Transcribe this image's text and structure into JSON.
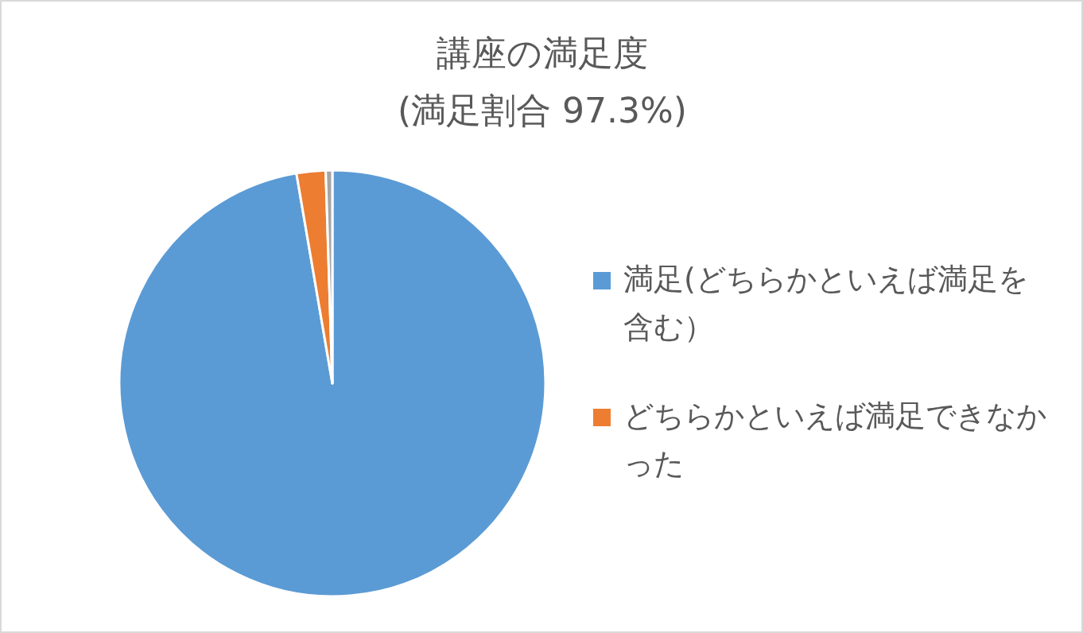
{
  "chart_data": {
    "type": "pie",
    "title": "講座の満足度",
    "subtitle": "(満足割合 97.3%)",
    "categories": [
      "満足(どちらかといえば満足を含む）",
      "どちらかといえば満足できなかった",
      null
    ],
    "values": [
      97.3,
      2.2,
      0.5
    ],
    "colors": [
      "#5b9bd5",
      "#ed7d31",
      "#a5a5a5"
    ],
    "legend": "right"
  }
}
